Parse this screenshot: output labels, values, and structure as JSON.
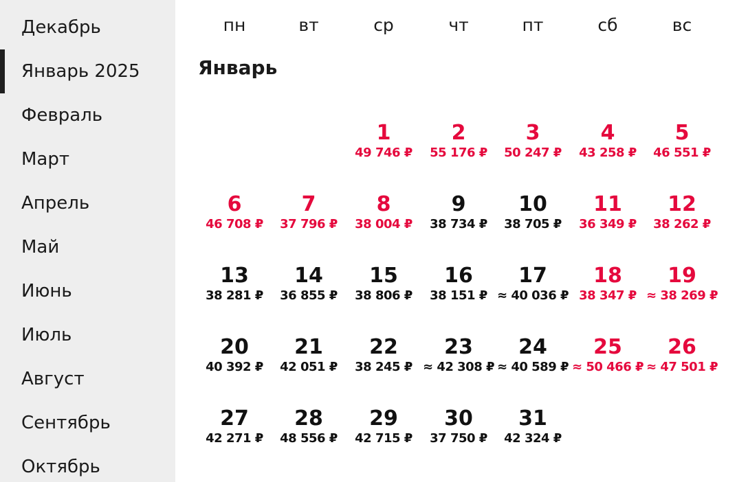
{
  "sidebar": {
    "months": [
      {
        "label": "Декабрь",
        "active": false
      },
      {
        "label": "Январь 2025",
        "active": true
      },
      {
        "label": "Февраль",
        "active": false
      },
      {
        "label": "Март",
        "active": false
      },
      {
        "label": "Апрель",
        "active": false
      },
      {
        "label": "Май",
        "active": false
      },
      {
        "label": "Июнь",
        "active": false
      },
      {
        "label": "Июль",
        "active": false
      },
      {
        "label": "Август",
        "active": false
      },
      {
        "label": "Сентябрь",
        "active": false
      },
      {
        "label": "Октябрь",
        "active": false
      }
    ]
  },
  "calendar": {
    "weekdays": [
      "пн",
      "вт",
      "ср",
      "чт",
      "пт",
      "сб",
      "вс"
    ],
    "month_title": "Январь",
    "first_weekday_index": 2,
    "colors": {
      "highlight": "#e5093d",
      "normal": "#111111"
    },
    "days": [
      {
        "day": "1",
        "price": "49 746 ₽",
        "highlight": true
      },
      {
        "day": "2",
        "price": "55 176 ₽",
        "highlight": true
      },
      {
        "day": "3",
        "price": "50 247 ₽",
        "highlight": true
      },
      {
        "day": "4",
        "price": "43 258 ₽",
        "highlight": true
      },
      {
        "day": "5",
        "price": "46 551 ₽",
        "highlight": true
      },
      {
        "day": "6",
        "price": "46 708 ₽",
        "highlight": true
      },
      {
        "day": "7",
        "price": "37 796 ₽",
        "highlight": true
      },
      {
        "day": "8",
        "price": "38 004 ₽",
        "highlight": true
      },
      {
        "day": "9",
        "price": "38 734 ₽",
        "highlight": false
      },
      {
        "day": "10",
        "price": "38 705 ₽",
        "highlight": false
      },
      {
        "day": "11",
        "price": "36 349 ₽",
        "highlight": true
      },
      {
        "day": "12",
        "price": "38 262 ₽",
        "highlight": true
      },
      {
        "day": "13",
        "price": "38 281 ₽",
        "highlight": false
      },
      {
        "day": "14",
        "price": "36 855 ₽",
        "highlight": false
      },
      {
        "day": "15",
        "price": "38 806 ₽",
        "highlight": false
      },
      {
        "day": "16",
        "price": "38 151 ₽",
        "highlight": false
      },
      {
        "day": "17",
        "price": "≈ 40 036 ₽",
        "highlight": false
      },
      {
        "day": "18",
        "price": "38 347 ₽",
        "highlight": true
      },
      {
        "day": "19",
        "price": "≈ 38 269 ₽",
        "highlight": true
      },
      {
        "day": "20",
        "price": "40 392 ₽",
        "highlight": false
      },
      {
        "day": "21",
        "price": "42 051 ₽",
        "highlight": false
      },
      {
        "day": "22",
        "price": "38 245 ₽",
        "highlight": false
      },
      {
        "day": "23",
        "price": "≈ 42 308 ₽",
        "highlight": false
      },
      {
        "day": "24",
        "price": "≈ 40 589 ₽",
        "highlight": false
      },
      {
        "day": "25",
        "price": "≈ 50 466 ₽",
        "highlight": true
      },
      {
        "day": "26",
        "price": "≈ 47 501 ₽",
        "highlight": true
      },
      {
        "day": "27",
        "price": "42 271 ₽",
        "highlight": false
      },
      {
        "day": "28",
        "price": "48 556 ₽",
        "highlight": false
      },
      {
        "day": "29",
        "price": "42 715 ₽",
        "highlight": false
      },
      {
        "day": "30",
        "price": "37 750 ₽",
        "highlight": false
      },
      {
        "day": "31",
        "price": "42 324 ₽",
        "highlight": false
      }
    ]
  }
}
